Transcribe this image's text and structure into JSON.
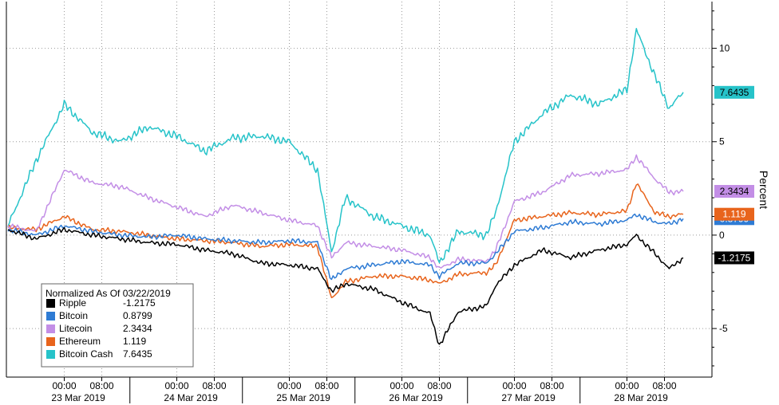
{
  "chart_data": {
    "type": "line",
    "ylabel": "Percent",
    "ylim": [
      -7.6,
      12.5
    ],
    "yticks": [
      -5,
      0,
      5,
      10
    ],
    "grid": true,
    "legend_placement": "bottom-left",
    "legend_title": "Normalized As Of 03/22/2019",
    "x_start": "2019-03-22 12:00",
    "x_end": "2019-03-28 12:00",
    "x_time_labels": [
      {
        "t": "2019-03-23 00:00",
        "label": "00:00"
      },
      {
        "t": "2019-03-23 08:00",
        "label": "08:00"
      },
      {
        "t": "2019-03-24 00:00",
        "label": "00:00"
      },
      {
        "t": "2019-03-24 08:00",
        "label": "08:00"
      },
      {
        "t": "2019-03-25 00:00",
        "label": "00:00"
      },
      {
        "t": "2019-03-25 08:00",
        "label": "08:00"
      },
      {
        "t": "2019-03-26 00:00",
        "label": "00:00"
      },
      {
        "t": "2019-03-26 08:00",
        "label": "08:00"
      },
      {
        "t": "2019-03-27 00:00",
        "label": "00:00"
      },
      {
        "t": "2019-03-27 08:00",
        "label": "08:00"
      },
      {
        "t": "2019-03-28 00:00",
        "label": "00:00"
      },
      {
        "t": "2019-03-28 08:00",
        "label": "08:00"
      }
    ],
    "x_date_labels": [
      {
        "t": "2019-03-23 03:00",
        "label": "23 Mar 2019"
      },
      {
        "t": "2019-03-24 03:00",
        "label": "24 Mar 2019"
      },
      {
        "t": "2019-03-25 03:00",
        "label": "25 Mar 2019"
      },
      {
        "t": "2019-03-26 03:00",
        "label": "26 Mar 2019"
      },
      {
        "t": "2019-03-27 03:00",
        "label": "27 Mar 2019"
      },
      {
        "t": "2019-03-28 03:00",
        "label": "28 Mar 2019"
      }
    ],
    "series": [
      {
        "name": "Ripple",
        "last": "-1.2175",
        "color": "#000000",
        "label_text_color": "#ffffff",
        "points": [
          [
            "2019-03-22 12:00",
            0.3
          ],
          [
            "2019-03-22 18:00",
            -0.2
          ],
          [
            "2019-03-23 00:00",
            0.3
          ],
          [
            "2019-03-23 06:00",
            0.0
          ],
          [
            "2019-03-23 12:00",
            -0.2
          ],
          [
            "2019-03-23 18:00",
            -0.4
          ],
          [
            "2019-03-24 00:00",
            -0.5
          ],
          [
            "2019-03-24 06:00",
            -0.8
          ],
          [
            "2019-03-24 12:00",
            -1.0
          ],
          [
            "2019-03-24 18:00",
            -1.5
          ],
          [
            "2019-03-25 00:00",
            -1.6
          ],
          [
            "2019-03-25 06:00",
            -1.8
          ],
          [
            "2019-03-25 09:00",
            -3.0
          ],
          [
            "2019-03-25 12:00",
            -2.6
          ],
          [
            "2019-03-25 18:00",
            -2.9
          ],
          [
            "2019-03-26 00:00",
            -3.6
          ],
          [
            "2019-03-26 06:00",
            -4.2
          ],
          [
            "2019-03-26 08:00",
            -5.9
          ],
          [
            "2019-03-26 12:00",
            -4.1
          ],
          [
            "2019-03-26 18:00",
            -3.8
          ],
          [
            "2019-03-26 20:00",
            -2.7
          ],
          [
            "2019-03-27 00:00",
            -1.6
          ],
          [
            "2019-03-27 06:00",
            -0.8
          ],
          [
            "2019-03-27 12:00",
            -1.2
          ],
          [
            "2019-03-27 18:00",
            -0.8
          ],
          [
            "2019-03-28 00:00",
            -0.5
          ],
          [
            "2019-03-28 02:00",
            0.0
          ],
          [
            "2019-03-28 06:00",
            -1.0
          ],
          [
            "2019-03-28 09:00",
            -1.8
          ],
          [
            "2019-03-28 12:00",
            -1.2175
          ]
        ]
      },
      {
        "name": "Bitcoin",
        "last": "0.8799",
        "color": "#2e7bd4",
        "label_text_color": "#ffffff",
        "points": [
          [
            "2019-03-22 12:00",
            0.3
          ],
          [
            "2019-03-22 18:00",
            0.0
          ],
          [
            "2019-03-23 00:00",
            0.5
          ],
          [
            "2019-03-23 06:00",
            0.2
          ],
          [
            "2019-03-23 12:00",
            0.0
          ],
          [
            "2019-03-23 18:00",
            -0.1
          ],
          [
            "2019-03-24 00:00",
            0.0
          ],
          [
            "2019-03-24 06:00",
            -0.2
          ],
          [
            "2019-03-24 12:00",
            -0.3
          ],
          [
            "2019-03-24 18:00",
            -0.4
          ],
          [
            "2019-03-25 00:00",
            -0.3
          ],
          [
            "2019-03-25 06:00",
            -0.4
          ],
          [
            "2019-03-25 09:00",
            -2.4
          ],
          [
            "2019-03-25 12:00",
            -1.8
          ],
          [
            "2019-03-25 18:00",
            -1.6
          ],
          [
            "2019-03-26 00:00",
            -1.4
          ],
          [
            "2019-03-26 06:00",
            -1.6
          ],
          [
            "2019-03-26 08:00",
            -2.2
          ],
          [
            "2019-03-26 12:00",
            -1.5
          ],
          [
            "2019-03-26 18:00",
            -1.5
          ],
          [
            "2019-03-26 20:00",
            -1.0
          ],
          [
            "2019-03-27 00:00",
            0.2
          ],
          [
            "2019-03-27 06:00",
            0.4
          ],
          [
            "2019-03-27 12:00",
            0.7
          ],
          [
            "2019-03-27 18:00",
            0.6
          ],
          [
            "2019-03-28 00:00",
            0.8
          ],
          [
            "2019-03-28 02:00",
            1.1
          ],
          [
            "2019-03-28 06:00",
            0.7
          ],
          [
            "2019-03-28 09:00",
            0.6
          ],
          [
            "2019-03-28 12:00",
            0.8799
          ]
        ]
      },
      {
        "name": "Litecoin",
        "last": "2.3434",
        "color": "#c38ee6",
        "label_text_color": "#000000",
        "points": [
          [
            "2019-03-22 12:00",
            0.5
          ],
          [
            "2019-03-22 18:00",
            0.2
          ],
          [
            "2019-03-23 00:00",
            3.5
          ],
          [
            "2019-03-23 06:00",
            2.8
          ],
          [
            "2019-03-23 12:00",
            2.6
          ],
          [
            "2019-03-23 18:00",
            2.0
          ],
          [
            "2019-03-24 00:00",
            1.5
          ],
          [
            "2019-03-24 06:00",
            1.0
          ],
          [
            "2019-03-24 12:00",
            1.6
          ],
          [
            "2019-03-24 18:00",
            1.2
          ],
          [
            "2019-03-25 00:00",
            0.8
          ],
          [
            "2019-03-25 06:00",
            0.5
          ],
          [
            "2019-03-25 09:00",
            -1.2
          ],
          [
            "2019-03-25 12:00",
            -0.4
          ],
          [
            "2019-03-25 18:00",
            -0.6
          ],
          [
            "2019-03-26 00:00",
            -0.8
          ],
          [
            "2019-03-26 06:00",
            -1.2
          ],
          [
            "2019-03-26 08:00",
            -1.8
          ],
          [
            "2019-03-26 12:00",
            -1.3
          ],
          [
            "2019-03-26 18:00",
            -1.4
          ],
          [
            "2019-03-26 20:00",
            -0.8
          ],
          [
            "2019-03-27 00:00",
            1.8
          ],
          [
            "2019-03-27 06:00",
            2.3
          ],
          [
            "2019-03-27 12:00",
            3.2
          ],
          [
            "2019-03-27 18:00",
            3.3
          ],
          [
            "2019-03-28 00:00",
            3.5
          ],
          [
            "2019-03-28 02:00",
            4.2
          ],
          [
            "2019-03-28 06:00",
            3.0
          ],
          [
            "2019-03-28 09:00",
            2.3
          ],
          [
            "2019-03-28 12:00",
            2.3434
          ]
        ]
      },
      {
        "name": "Ethereum",
        "last": "1.119",
        "color": "#e8641c",
        "label_text_color": "#ffffff",
        "points": [
          [
            "2019-03-22 12:00",
            0.4
          ],
          [
            "2019-03-22 18:00",
            0.3
          ],
          [
            "2019-03-23 00:00",
            1.0
          ],
          [
            "2019-03-23 06:00",
            0.3
          ],
          [
            "2019-03-23 12:00",
            0.2
          ],
          [
            "2019-03-23 18:00",
            0.0
          ],
          [
            "2019-03-24 00:00",
            -0.2
          ],
          [
            "2019-03-24 06:00",
            -0.3
          ],
          [
            "2019-03-24 12:00",
            -0.4
          ],
          [
            "2019-03-24 18:00",
            -0.6
          ],
          [
            "2019-03-25 00:00",
            -0.5
          ],
          [
            "2019-03-25 06:00",
            -0.6
          ],
          [
            "2019-03-25 09:00",
            -3.4
          ],
          [
            "2019-03-25 12:00",
            -2.5
          ],
          [
            "2019-03-25 18:00",
            -2.2
          ],
          [
            "2019-03-26 00:00",
            -2.2
          ],
          [
            "2019-03-26 06:00",
            -2.4
          ],
          [
            "2019-03-26 08:00",
            -2.6
          ],
          [
            "2019-03-26 12:00",
            -2.1
          ],
          [
            "2019-03-26 18:00",
            -2.0
          ],
          [
            "2019-03-26 20:00",
            -1.6
          ],
          [
            "2019-03-27 00:00",
            0.8
          ],
          [
            "2019-03-27 06:00",
            1.0
          ],
          [
            "2019-03-27 12:00",
            1.2
          ],
          [
            "2019-03-27 18:00",
            1.1
          ],
          [
            "2019-03-28 00:00",
            1.3
          ],
          [
            "2019-03-28 02:00",
            2.8
          ],
          [
            "2019-03-28 06:00",
            1.2
          ],
          [
            "2019-03-28 09:00",
            1.0
          ],
          [
            "2019-03-28 12:00",
            1.119
          ]
        ]
      },
      {
        "name": "Bitcoin Cash",
        "last": "7.6435",
        "color": "#26c3c9",
        "label_text_color": "#000000",
        "points": [
          [
            "2019-03-22 12:00",
            0.5
          ],
          [
            "2019-03-22 18:00",
            4.0
          ],
          [
            "2019-03-23 00:00",
            7.0
          ],
          [
            "2019-03-23 06:00",
            5.5
          ],
          [
            "2019-03-23 12:00",
            5.0
          ],
          [
            "2019-03-23 18:00",
            5.8
          ],
          [
            "2019-03-24 00:00",
            5.3
          ],
          [
            "2019-03-24 06:00",
            4.5
          ],
          [
            "2019-03-24 12:00",
            5.2
          ],
          [
            "2019-03-24 18:00",
            5.3
          ],
          [
            "2019-03-25 00:00",
            5.0
          ],
          [
            "2019-03-25 06:00",
            3.5
          ],
          [
            "2019-03-25 09:00",
            -0.9
          ],
          [
            "2019-03-25 12:00",
            2.0
          ],
          [
            "2019-03-25 18:00",
            1.0
          ],
          [
            "2019-03-26 00:00",
            0.5
          ],
          [
            "2019-03-26 06:00",
            0.0
          ],
          [
            "2019-03-26 08:00",
            -1.5
          ],
          [
            "2019-03-26 12:00",
            0.2
          ],
          [
            "2019-03-26 18:00",
            0.0
          ],
          [
            "2019-03-26 20:00",
            1.2
          ],
          [
            "2019-03-27 00:00",
            5.0
          ],
          [
            "2019-03-27 06:00",
            6.5
          ],
          [
            "2019-03-27 12:00",
            7.5
          ],
          [
            "2019-03-27 18:00",
            7.0
          ],
          [
            "2019-03-28 00:00",
            7.8
          ],
          [
            "2019-03-28 02:00",
            11.0
          ],
          [
            "2019-03-28 06:00",
            8.5
          ],
          [
            "2019-03-28 09:00",
            6.8
          ],
          [
            "2019-03-28 12:00",
            7.6435
          ]
        ]
      }
    ]
  }
}
